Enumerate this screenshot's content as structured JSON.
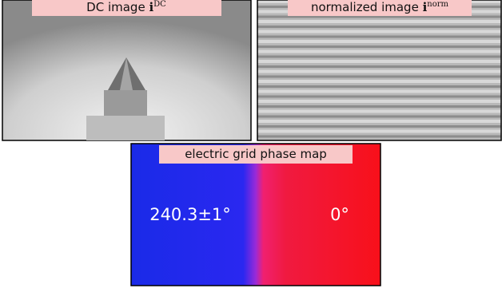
{
  "panels": [
    {
      "label": "DC image",
      "symbol": "i",
      "superscript": "DC"
    },
    {
      "label": "normalized image",
      "symbol": "i",
      "superscript": "norm"
    },
    {
      "label": "electric grid phase map",
      "annotations": [
        "240.3±1°",
        "0°"
      ]
    }
  ]
}
